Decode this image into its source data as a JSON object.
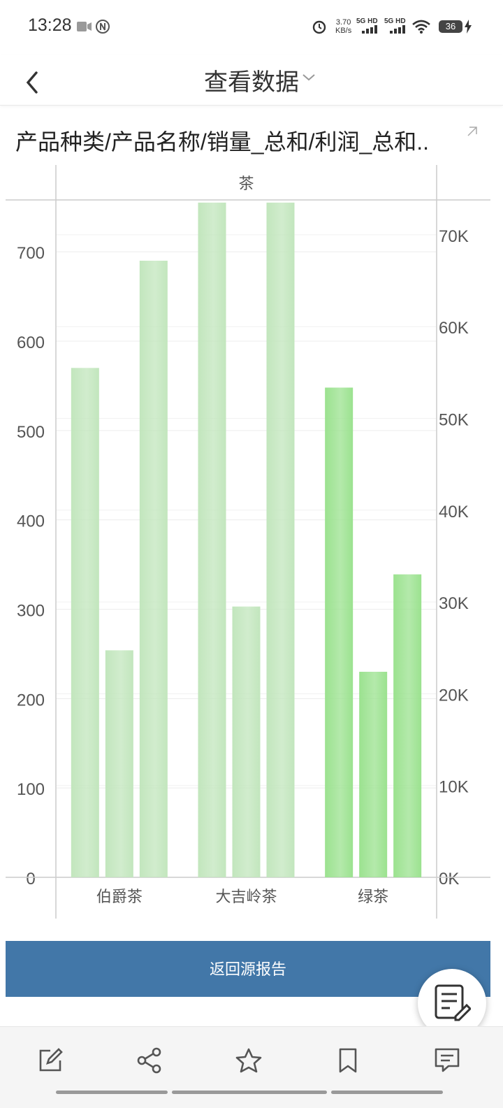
{
  "status_bar": {
    "time": "13:28",
    "speed_value": "3.70",
    "speed_unit": "KB/s",
    "network_1": "5G HD",
    "network_2": "5G HD",
    "battery": "36",
    "icons": [
      "video-icon",
      "nfc-icon",
      "alarm-icon",
      "signal-icon",
      "wifi-icon",
      "battery-icon",
      "charging-icon"
    ]
  },
  "header": {
    "title": "查看数据"
  },
  "chart_title": "产品种类/产品名称/销量_总和/利润_总和..",
  "chart_data": {
    "type": "bar",
    "group_header": "茶",
    "categories": [
      "伯爵茶",
      "大吉岭茶",
      "绿茶"
    ],
    "series": [
      {
        "values": [
          570,
          755,
          548
        ]
      },
      {
        "values": [
          254,
          303,
          230
        ]
      },
      {
        "values": [
          690,
          755,
          339
        ]
      }
    ],
    "bar_colors": [
      "#c2e6bd",
      "#c2e6bd",
      "#9be28f"
    ],
    "y_left": {
      "ticks": [
        "0",
        "100",
        "200",
        "300",
        "400",
        "500",
        "600",
        "700"
      ],
      "range": [
        0,
        758
      ]
    },
    "y_right": {
      "ticks": [
        "0K",
        "10K",
        "20K",
        "30K",
        "40K",
        "50K",
        "60K",
        "70K"
      ],
      "range": [
        0,
        73800
      ]
    },
    "grid": true
  },
  "return_button": "返回源报告",
  "bottom_bar": {
    "tools": [
      "edit-icon",
      "share-icon",
      "star-icon",
      "bookmark-icon",
      "comment-icon"
    ]
  }
}
